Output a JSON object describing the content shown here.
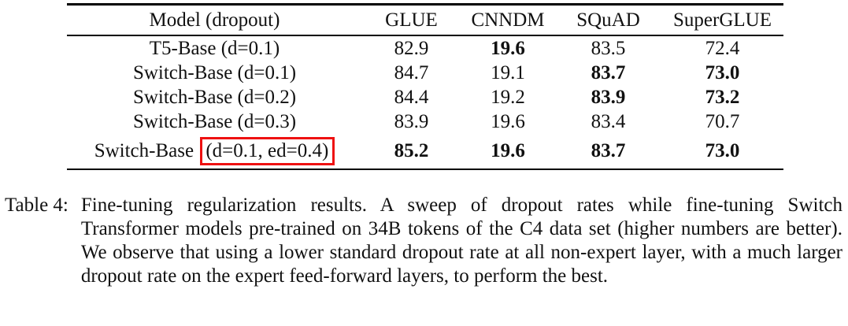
{
  "table": {
    "columns": [
      "Model (dropout)",
      "GLUE",
      "CNNDM",
      "SQuAD",
      "SuperGLUE"
    ],
    "rows": [
      {
        "model": "T5-Base (d=0.1)",
        "values": [
          "82.9",
          "19.6",
          "83.5",
          "72.4"
        ],
        "bold": [
          false,
          true,
          false,
          false
        ]
      },
      {
        "model": "Switch-Base (d=0.1)",
        "values": [
          "84.7",
          "19.1",
          "83.7",
          "73.0"
        ],
        "bold": [
          false,
          false,
          true,
          true
        ]
      },
      {
        "model": "Switch-Base (d=0.2)",
        "values": [
          "84.4",
          "19.2",
          "83.9",
          "73.2"
        ],
        "bold": [
          false,
          false,
          true,
          true
        ]
      },
      {
        "model": "Switch-Base (d=0.3)",
        "values": [
          "83.9",
          "19.6",
          "83.4",
          "70.7"
        ],
        "bold": [
          false,
          false,
          false,
          false
        ]
      },
      {
        "model_prefix": "Switch-Base ",
        "model_boxed": "(d=0.1, ed=0.4)",
        "values": [
          "85.2",
          "19.6",
          "83.7",
          "73.0"
        ],
        "bold": [
          true,
          true,
          true,
          true
        ]
      }
    ],
    "highlight_color": "#ee1111"
  },
  "caption": {
    "label": "Table 4:",
    "text": "Fine-tuning regularization results. A sweep of dropout rates while fine-tuning Switch Transformer models pre-trained on 34B tokens of the C4 data set (higher numbers are better). We observe that using a lower standard dropout rate at all non-expert layer, with a much larger dropout rate on the expert feed-forward layers, to perform the best."
  }
}
